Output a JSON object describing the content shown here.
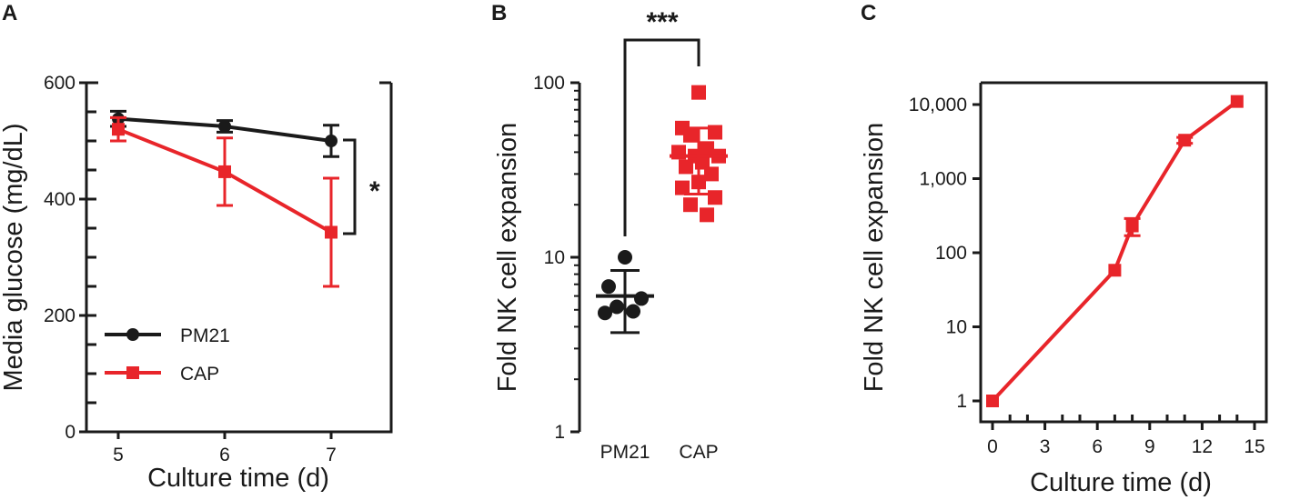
{
  "chart_data": [
    {
      "panel": "A",
      "type": "line",
      "xlabel": "Culture time (d)",
      "ylabel": "Media glucose (mg/dL)",
      "x": [
        5,
        6,
        7
      ],
      "xlim": [
        4.6,
        7.9
      ],
      "ylim": [
        0,
        600
      ],
      "x_ticks": [
        "5",
        "6",
        "7"
      ],
      "y_ticks": [
        "0",
        "200",
        "400",
        "600"
      ],
      "series": [
        {
          "name": "PM21",
          "color": "#1a1a1a",
          "marker": "circle",
          "values": [
            538,
            525,
            500
          ],
          "error": [
            13,
            10,
            27
          ]
        },
        {
          "name": "CAP",
          "color": "#e8252a",
          "marker": "square",
          "values": [
            520,
            447,
            343
          ],
          "error": [
            20,
            58,
            93
          ]
        }
      ],
      "legend_position": "bottom-left",
      "significance": "*"
    },
    {
      "panel": "B",
      "type": "scatter",
      "ylabel": "Fold  NK cell expansion",
      "yscale": "log",
      "ylim": [
        1,
        100
      ],
      "y_ticks": [
        "1",
        "10",
        "100"
      ],
      "categories": [
        "PM21",
        "CAP"
      ],
      "series": [
        {
          "name": "PM21",
          "color": "#1a1a1a",
          "marker": "circle",
          "points": [
            10.0,
            6.8,
            5.8,
            5.2,
            4.9,
            4.8
          ],
          "mean": 6.0,
          "sd_low": 3.7,
          "sd_high": 8.4
        },
        {
          "name": "CAP",
          "color": "#e8252a",
          "marker": "square",
          "points": [
            88,
            55,
            52,
            50,
            42,
            40,
            38,
            38,
            35,
            33,
            30,
            27,
            25,
            22,
            20,
            17.5
          ],
          "mean": 38,
          "sd_low": 23,
          "sd_high": 55
        }
      ],
      "significance": "***"
    },
    {
      "panel": "C",
      "type": "line",
      "xlabel": "Culture time (d)",
      "ylabel": "Fold  NK cell expansion",
      "yscale": "log",
      "xlim": [
        -0.8,
        15
      ],
      "ylim": [
        0.7,
        15000
      ],
      "x_ticks": [
        "0",
        "3",
        "6",
        "9",
        "12",
        "15"
      ],
      "y_ticks": [
        "1",
        "10",
        "100",
        "1,000",
        "10,000"
      ],
      "series": [
        {
          "name": "CAP",
          "color": "#e8252a",
          "marker": "square",
          "x": [
            0,
            7,
            8,
            11,
            14
          ],
          "values": [
            1,
            58,
            230,
            3300,
            11000
          ],
          "err_low": [
            1,
            58,
            170,
            3000,
            11000
          ],
          "err_high": [
            1,
            58,
            290,
            3600,
            11000
          ]
        }
      ]
    }
  ]
}
